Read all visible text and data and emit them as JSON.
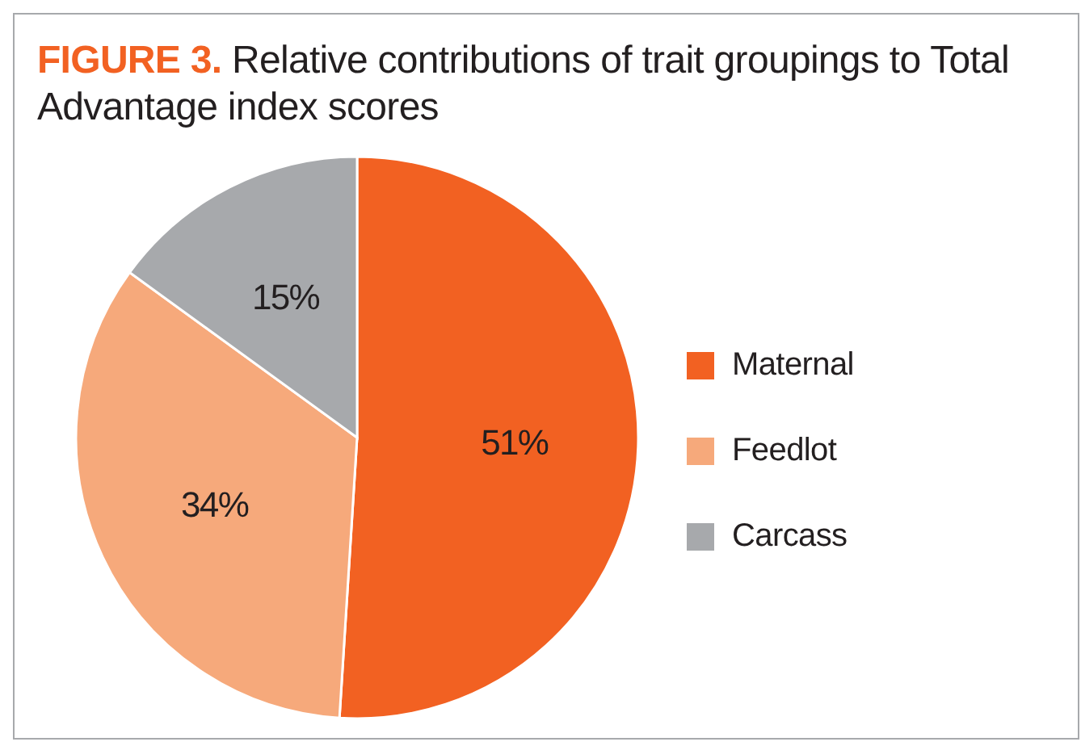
{
  "chart_data": {
    "type": "pie",
    "title": "FIGURE 3. Relative contributions of trait groupings to Total Advantage index scores",
    "categories": [
      "Maternal",
      "Feedlot",
      "Carcass"
    ],
    "values": [
      51,
      34,
      15
    ],
    "value_labels": [
      "51%",
      "34%",
      "15%"
    ],
    "colors": [
      "#f26122",
      "#f6a97b",
      "#a7a9ac"
    ],
    "legend": "right"
  }
}
